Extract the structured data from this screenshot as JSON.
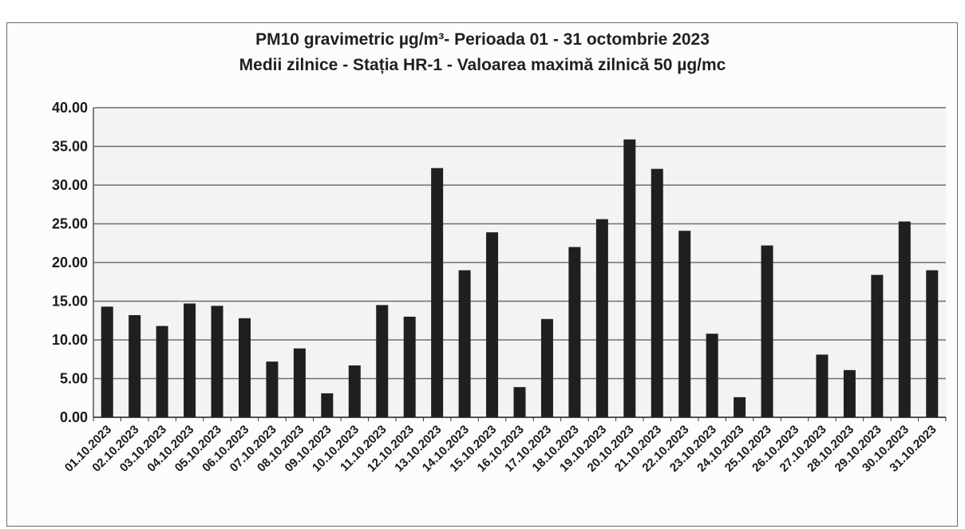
{
  "chart_data": {
    "type": "bar",
    "title": "PM10 gravimetric µg/m³- Perioada 01 - 31 octombrie 2023",
    "subtitle": "Medii zilnice - Stația HR-1 -  Valoarea maximă zilnică 50 µg/mc",
    "xlabel": "",
    "ylabel": "",
    "ylim": [
      0,
      40
    ],
    "yticks": [
      "0.00",
      "5.00",
      "10.00",
      "15.00",
      "20.00",
      "25.00",
      "30.00",
      "35.00",
      "40.00"
    ],
    "grid": true,
    "legend": "none",
    "bar_color": "#1f1f1f",
    "categories": [
      "01.10.2023",
      "02.10.2023",
      "03.10.2023",
      "04.10.2023",
      "05.10.2023",
      "06.10.2023",
      "07.10.2023",
      "08.10.2023",
      "09.10.2023",
      "10.10.2023",
      "11.10.2023",
      "12.10.2023",
      "13.10.2023",
      "14.10.2023",
      "15.10.2023",
      "16.10.2023",
      "17.10.2023",
      "18.10.2023",
      "19.10.2023",
      "20.10.2023",
      "21.10.2023",
      "22.10.2023",
      "23.10.2023",
      "24.10.2023",
      "25.10.2023",
      "26.10.2023",
      "27.10.2023",
      "28.10.2023",
      "29.10.2023",
      "30.10.2023",
      "31.10.2023"
    ],
    "values": [
      14.3,
      13.2,
      11.8,
      14.7,
      14.4,
      12.8,
      7.2,
      8.9,
      3.1,
      6.7,
      14.5,
      13.0,
      32.2,
      19.0,
      23.9,
      3.9,
      12.7,
      22.0,
      25.6,
      35.9,
      32.1,
      24.1,
      10.8,
      2.6,
      22.2,
      null,
      8.1,
      6.1,
      18.4,
      25.3,
      19.0
    ]
  }
}
